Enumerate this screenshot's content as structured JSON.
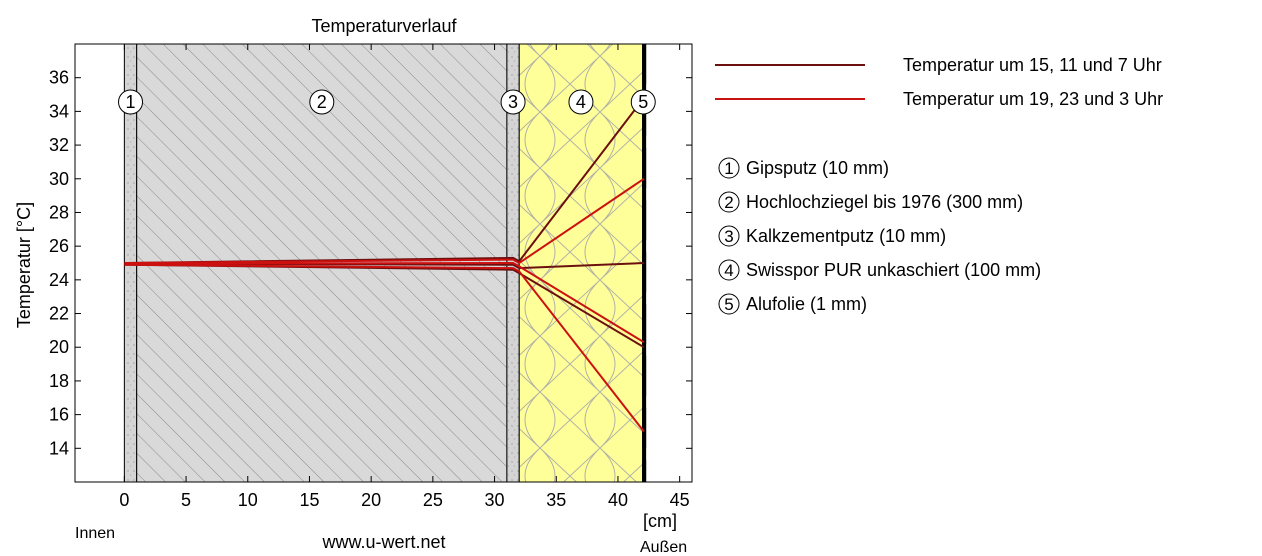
{
  "chart_data": {
    "type": "line",
    "title": "Temperaturverlauf",
    "ylabel": "Temperatur [°C]",
    "xunit": "[cm]",
    "xlim": [
      -4,
      46
    ],
    "ylim": [
      12,
      38
    ],
    "xticks": [
      0,
      5,
      10,
      15,
      20,
      25,
      30,
      35,
      40,
      45
    ],
    "yticks": [
      14,
      16,
      18,
      20,
      22,
      24,
      26,
      28,
      30,
      32,
      34,
      36
    ],
    "inside_label": "Innen",
    "outside_label": "Außen",
    "footer": "www.u-wert.net",
    "layers": [
      {
        "num": "1",
        "name": "Gipsputz (10 mm)",
        "x0": 0,
        "x1": 1,
        "material": "plaster"
      },
      {
        "num": "2",
        "name": "Hochlochziegel bis 1976 (300 mm)",
        "x0": 1,
        "x1": 31,
        "material": "brick"
      },
      {
        "num": "3",
        "name": "Kalkzementputz (10 mm)",
        "x0": 31,
        "x1": 32,
        "material": "plaster"
      },
      {
        "num": "4",
        "name": "Swisspor PUR unkaschiert (100 mm)",
        "x0": 32,
        "x1": 42,
        "material": "insulation"
      },
      {
        "num": "5",
        "name": "Alufolie (1 mm)",
        "x0": 42,
        "x1": 42.1,
        "material": "foil"
      }
    ],
    "legend": [
      {
        "label": "Temperatur um 15, 11 und 7 Uhr",
        "color": "#6b0f0f"
      },
      {
        "label": "Temperatur um 19, 23 und 3 Uhr",
        "color": "#cc1111"
      }
    ],
    "series": [
      {
        "group": 0,
        "x": [
          0,
          31.5,
          32,
          42.1
        ],
        "y": [
          25.0,
          25.3,
          25.1,
          34.8
        ]
      },
      {
        "group": 0,
        "x": [
          0,
          31.5,
          32,
          42.1
        ],
        "y": [
          24.9,
          24.6,
          24.4,
          20.0
        ]
      },
      {
        "group": 0,
        "x": [
          0,
          31.5,
          32,
          42.1
        ],
        "y": [
          24.95,
          24.9,
          24.7,
          25.0
        ]
      },
      {
        "group": 1,
        "x": [
          0,
          31.5,
          32,
          42.1
        ],
        "y": [
          25.0,
          25.2,
          25.0,
          30.0
        ]
      },
      {
        "group": 1,
        "x": [
          0,
          31.5,
          32,
          42.1
        ],
        "y": [
          24.9,
          24.7,
          24.5,
          15.0
        ]
      },
      {
        "group": 1,
        "x": [
          0,
          31.5,
          32,
          42.1
        ],
        "y": [
          24.95,
          25.0,
          24.8,
          20.3
        ]
      }
    ],
    "colors": {
      "plaster": "#d7d7d7",
      "brick": "#d9d9d9",
      "insulation": "#ffff99",
      "foil": "#000000"
    }
  }
}
